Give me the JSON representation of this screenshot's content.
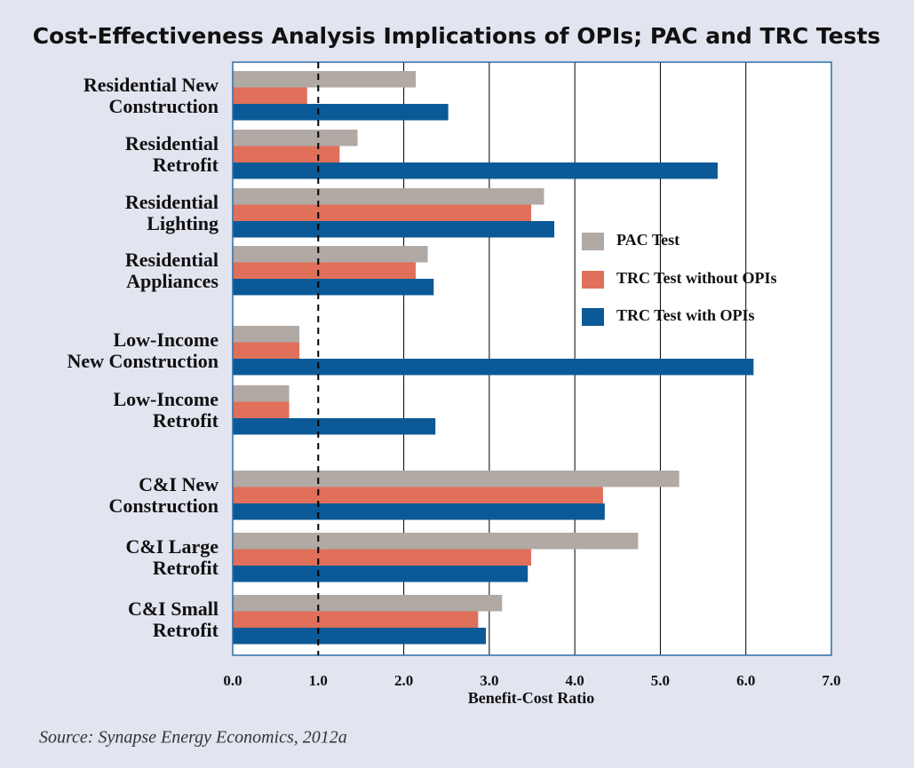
{
  "chart_data": {
    "type": "bar",
    "orientation": "horizontal",
    "title": "Cost-Effectiveness Analysis Implications of OPIs; PAC and TRC Tests",
    "x_label": "Benefit-Cost Ratio",
    "source": "Source: Synapse Energy Economics, 2012a",
    "categories": [
      "Residential New\nConstruction",
      "Residential\nRetrofit",
      "Residential\nLighting",
      "Residential\nAppliances",
      "Low-Income\nNew Construction",
      "Low-Income\nRetrofit",
      "C&I New\nConstruction",
      "C&I Large\nRetrofit",
      "C&I Small\nRetrofit"
    ],
    "series": [
      {
        "name": "PAC Test",
        "color": "#b1a9a4",
        "values": [
          2.14,
          1.46,
          3.64,
          2.28,
          0.78,
          0.66,
          5.22,
          4.74,
          3.15
        ]
      },
      {
        "name": "TRC Test without OPIs",
        "color": "#e0705a",
        "values": [
          0.87,
          1.25,
          3.49,
          2.14,
          0.78,
          0.66,
          4.33,
          3.49,
          2.87
        ]
      },
      {
        "name": "TRC Test with OPIs",
        "color": "#0b5a97",
        "values": [
          2.52,
          5.67,
          3.76,
          2.35,
          6.09,
          2.37,
          4.35,
          3.45,
          2.96
        ]
      }
    ],
    "xlim": [
      0,
      7
    ],
    "xticks": [
      {
        "value": 0,
        "label": "0.0"
      },
      {
        "value": 1,
        "label": "1.0"
      },
      {
        "value": 2,
        "label": "2.0"
      },
      {
        "value": 3,
        "label": "3.0"
      },
      {
        "value": 4,
        "label": "4.0"
      },
      {
        "value": 5,
        "label": "5.0"
      },
      {
        "value": 6,
        "label": "6.0"
      },
      {
        "value": 7,
        "label": "7.0"
      }
    ],
    "reference_line": 1,
    "grid": true
  }
}
